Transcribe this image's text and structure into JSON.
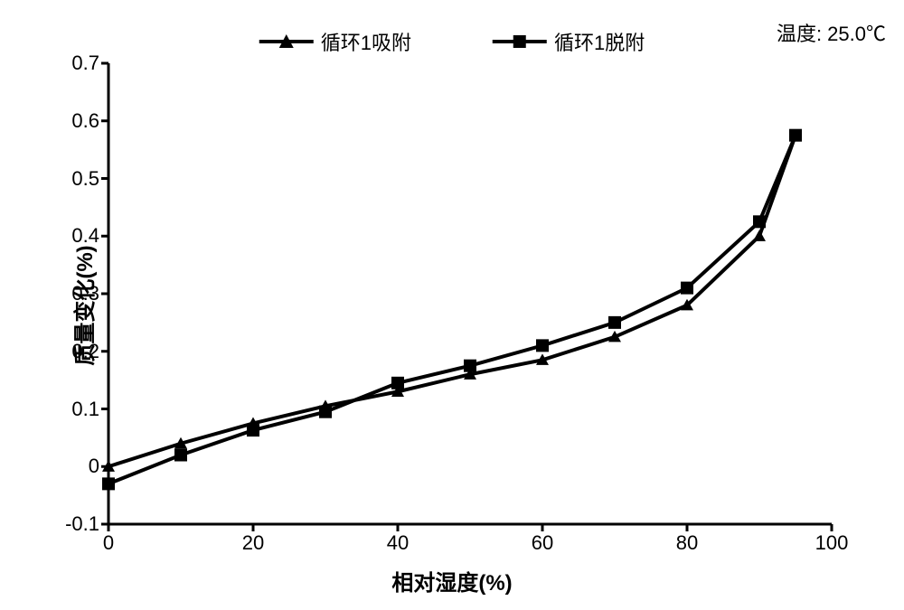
{
  "temperature_label": "温度: 25.0℃",
  "legend": {
    "series1": "循环1吸附",
    "series2": "循环1脱附"
  },
  "axes": {
    "x_label": "相对湿度(%)",
    "y_label": "质量变化(%)",
    "x_ticks": [
      0,
      20,
      40,
      60,
      80,
      100
    ],
    "y_ticks": [
      -0.1,
      0,
      0.1,
      0.2,
      0.3,
      0.4,
      0.5,
      0.6,
      0.7
    ],
    "xlim": [
      0,
      100
    ],
    "ylim": [
      -0.1,
      0.7
    ]
  },
  "chart": {
    "type": "line",
    "background_color": "#ffffff",
    "axis_color": "#000000",
    "line_color": "#000000",
    "line_width": 4,
    "marker_size": 14,
    "tick_fontsize": 22,
    "label_fontsize": 24,
    "label_fontweight": "bold",
    "series": [
      {
        "name": "循环1吸附",
        "marker": "triangle",
        "x": [
          0,
          10,
          20,
          30,
          40,
          50,
          60,
          70,
          80,
          90,
          95
        ],
        "y": [
          0.0,
          0.04,
          0.075,
          0.105,
          0.13,
          0.16,
          0.185,
          0.225,
          0.28,
          0.4,
          0.575
        ]
      },
      {
        "name": "循环1脱附",
        "marker": "square",
        "x": [
          0,
          10,
          20,
          30,
          40,
          50,
          60,
          70,
          80,
          90,
          95
        ],
        "y": [
          -0.03,
          0.02,
          0.063,
          0.095,
          0.145,
          0.175,
          0.21,
          0.25,
          0.31,
          0.425,
          0.575
        ]
      }
    ]
  }
}
